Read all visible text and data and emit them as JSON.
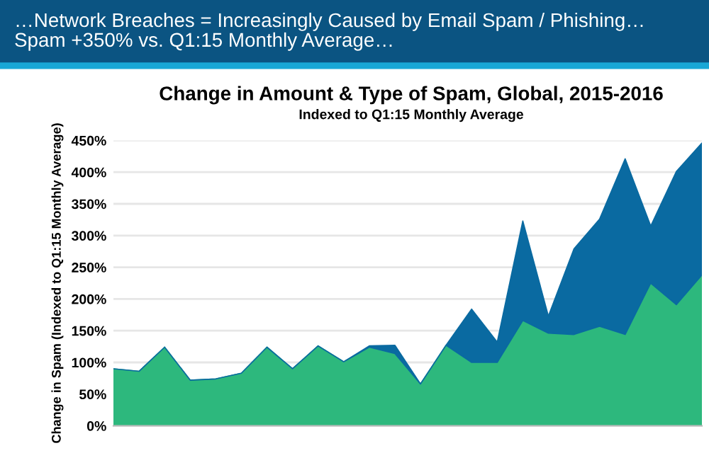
{
  "chart_data": {
    "type": "area",
    "stacked": true,
    "title": "Change in Amount & Type of Spam, Global, 2015-2016",
    "subtitle": "Indexed to Q1:15 Monthly Average",
    "ylabel": "Change in Spam (Indexed to Q1:15 Monthly Average)",
    "annotations": [
      "…Network Breaches = Increasingly Caused by Email Spam / Phishing…\nSpam +350% vs. Q1:15 Monthly Average…"
    ],
    "categories": [
      null,
      null,
      null,
      null,
      null,
      null,
      null,
      null,
      null,
      null,
      null,
      null,
      null,
      null,
      null,
      null,
      null,
      null,
      null,
      null,
      null,
      null,
      null,
      null
    ],
    "series": [
      {
        "color": "#2db87d",
        "values": [
          90,
          86,
          124,
          72,
          74,
          83,
          124,
          90,
          126,
          101,
          124,
          114,
          66,
          127,
          100,
          100,
          166,
          146,
          144,
          157,
          144,
          225,
          191,
          238
        ]
      },
      {
        "color": "#0a6aa1",
        "values": [
          0,
          0,
          0,
          0,
          0,
          0,
          0,
          0,
          0,
          0,
          2,
          13,
          0,
          0,
          84,
          32,
          157,
          27,
          135,
          169,
          277,
          90,
          210,
          208
        ]
      }
    ],
    "ylim": [
      0,
      450
    ],
    "yticks": [
      {
        "value": 0,
        "label": "0%"
      },
      {
        "value": 50,
        "label": "50%"
      },
      {
        "value": 100,
        "label": "100%"
      },
      {
        "value": 150,
        "label": "150%"
      },
      {
        "value": 200,
        "label": "200%"
      },
      {
        "value": 250,
        "label": "250%"
      },
      {
        "value": 300,
        "label": "300%"
      },
      {
        "value": 350,
        "label": "350%"
      },
      {
        "value": 400,
        "label": "400%"
      },
      {
        "value": 450,
        "label": "450%"
      }
    ],
    "grid": "y",
    "tick_labels": "y"
  }
}
